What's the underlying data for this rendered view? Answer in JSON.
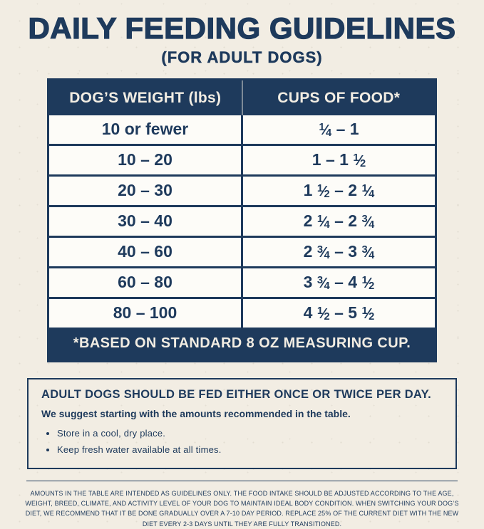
{
  "page": {
    "title": "DAILY FEEDING GUIDELINES",
    "subtitle": "(FOR ADULT DOGS)"
  },
  "table": {
    "headers": {
      "weight": "DOG’S WEIGHT (lbs)",
      "cups": "CUPS OF FOOD*"
    },
    "rows": [
      {
        "weight": "10 or fewer",
        "cups": "¼ – 1"
      },
      {
        "weight": "10 – 20",
        "cups": "1 – 1 ½"
      },
      {
        "weight": "20 – 30",
        "cups": "1 ½ – 2 ¼"
      },
      {
        "weight": "30 – 40",
        "cups": "2 ¼ – 2 ¾"
      },
      {
        "weight": "40 – 60",
        "cups": "2 ¾ – 3 ¾"
      },
      {
        "weight": "60 – 80",
        "cups": "3 ¾ – 4 ½"
      },
      {
        "weight": "80 – 100",
        "cups": "4 ½ – 5 ½"
      }
    ],
    "footnote": "*BASED ON STANDARD 8 OZ MEASURING CUP."
  },
  "info_box": {
    "heading": "ADULT DOGS SHOULD BE FED EITHER ONCE OR TWICE PER DAY.",
    "subheading": "We suggest starting with the amounts recommended in the table.",
    "bullets": [
      "Store in a cool, dry place.",
      "Keep fresh water available at all times."
    ]
  },
  "fine_print": "AMOUNTS IN THE TABLE ARE INTENDED AS GUIDELINES ONLY. THE FOOD INTAKE SHOULD BE ADJUSTED ACCORDING TO THE AGE, WEIGHT, BREED, CLIMATE, AND ACTIVITY LEVEL OF YOUR DOG TO MAINTAIN IDEAL BODY CONDITION. WHEN SWITCHING YOUR DOG’S DIET, WE RECOMMEND THAT IT BE DONE GRADUALLY OVER A 7-10 DAY PERIOD. REPLACE 25% OF THE CURRENT DIET WITH THE NEW DIET EVERY 2-3 DAYS UNTIL THEY ARE FULLY TRANSITIONED.",
  "colors": {
    "navy": "#1e3a5c",
    "background": "#f2ede3",
    "row_background": "#fdfcf8"
  }
}
